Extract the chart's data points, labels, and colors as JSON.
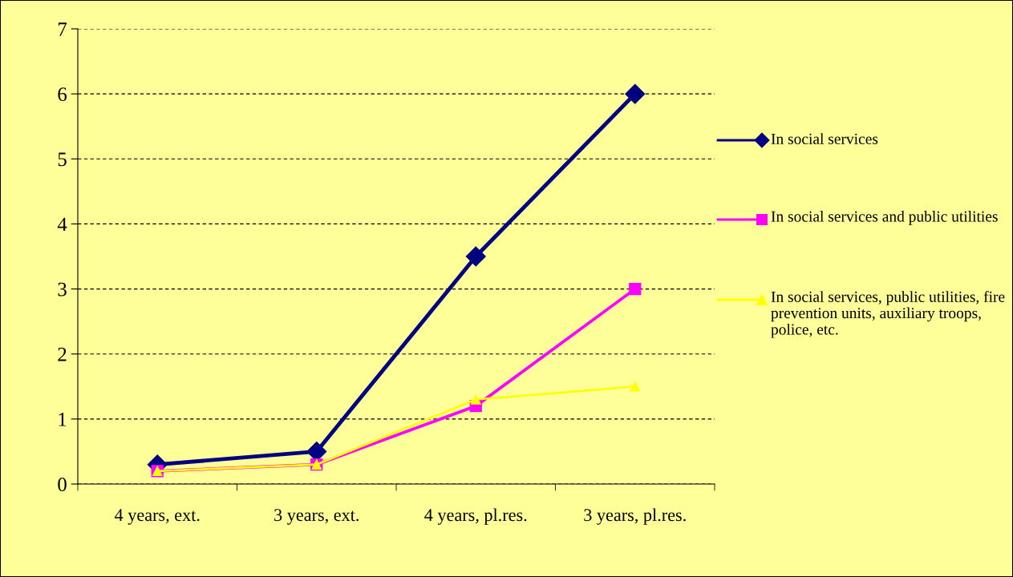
{
  "chart_data": {
    "type": "line",
    "categories": [
      "4 years, ext.",
      "3 years, ext.",
      "4 years, pl.res.",
      "3 years, pl.res."
    ],
    "series": [
      {
        "name": "In social services",
        "color": "#000080",
        "marker": "diamond",
        "values": [
          0.3,
          0.5,
          3.5,
          6
        ]
      },
      {
        "name": "In social services and public utilities",
        "color": "#ff00ff",
        "marker": "square",
        "values": [
          0.2,
          0.3,
          1.2,
          3
        ]
      },
      {
        "name": "In social services, public utilities, fire prevention units, auxiliary troops, police, etc.",
        "color": "#ffff00",
        "marker": "triangle",
        "values": [
          0.2,
          0.3,
          1.3,
          1.5
        ]
      }
    ],
    "ylim": [
      0,
      7
    ],
    "yticks": [
      0,
      1,
      2,
      3,
      4,
      5,
      6,
      7
    ],
    "grid": "y",
    "legend": "right",
    "line_style": "solid"
  }
}
